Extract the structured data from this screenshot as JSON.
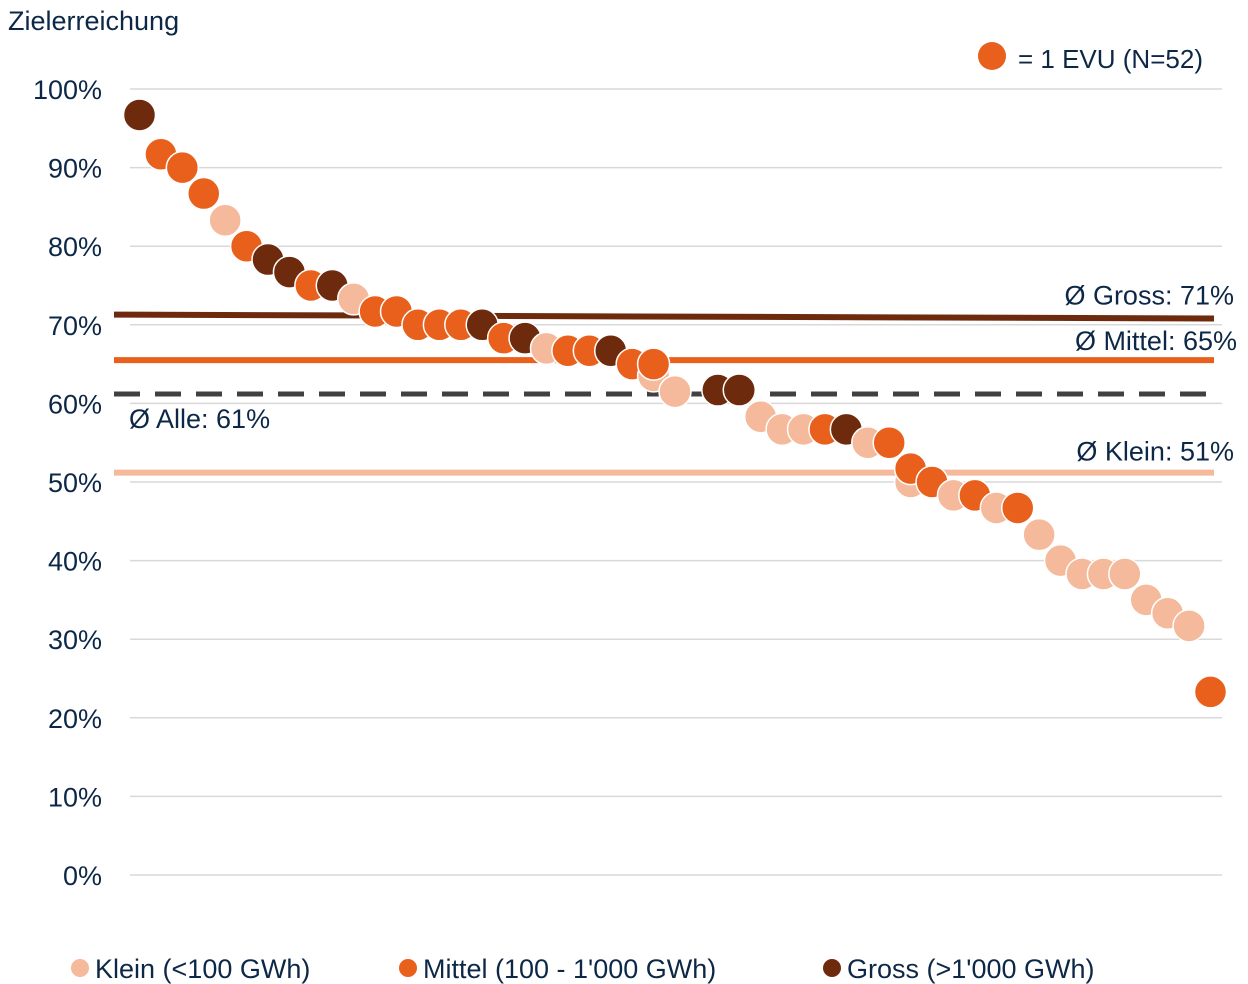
{
  "chart_data": {
    "type": "scatter",
    "ylabel": "Zielerreichung",
    "ylim": [
      0,
      100
    ],
    "yticks": [
      0,
      10,
      20,
      30,
      40,
      50,
      60,
      70,
      80,
      90,
      100
    ],
    "y_tick_labels": [
      "0%",
      "10%",
      "20%",
      "30%",
      "40%",
      "50%",
      "60%",
      "70%",
      "80%",
      "90%",
      "100%"
    ],
    "grid": true,
    "legend_position": "bottom",
    "marker_note": "= 1 EVU (N=52)",
    "marker_note_color": "#E8601C",
    "colors": {
      "Klein": "#F5B99B",
      "Mittel": "#E8601C",
      "Gross": "#6E2A0C",
      "text": "#0D2847",
      "grid": "#D9D9D9",
      "avg_all": "#404040"
    },
    "series": [
      {
        "name": "Klein (<100 GWh)",
        "key": "Klein",
        "color": "#F5B99B",
        "points": [
          [
            5,
            83.3
          ],
          [
            11,
            73.3
          ],
          [
            20,
            67
          ],
          [
            25,
            63.5
          ],
          [
            26,
            61.5
          ],
          [
            30,
            58.3
          ],
          [
            31,
            56.7
          ],
          [
            32,
            56.7
          ],
          [
            35,
            55
          ],
          [
            37,
            50
          ],
          [
            39,
            48.3
          ],
          [
            41,
            46.7
          ],
          [
            43,
            43.3
          ],
          [
            44,
            40
          ],
          [
            45,
            38.3
          ],
          [
            46,
            38.3
          ],
          [
            47,
            38.3
          ],
          [
            48,
            35
          ],
          [
            49,
            33.3
          ],
          [
            50,
            31.7
          ]
        ]
      },
      {
        "name": "Mittel (100 - 1'000 GWh)",
        "key": "Mittel",
        "color": "#E8601C",
        "points": [
          [
            2,
            91.7
          ],
          [
            3,
            90
          ],
          [
            4,
            86.7
          ],
          [
            6,
            80
          ],
          [
            9,
            75
          ],
          [
            12,
            71.7
          ],
          [
            13,
            71.7
          ],
          [
            14,
            70
          ],
          [
            15,
            70
          ],
          [
            16,
            70
          ],
          [
            18,
            68.3
          ],
          [
            21,
            66.7
          ],
          [
            22,
            66.7
          ],
          [
            24,
            65
          ],
          [
            25,
            65
          ],
          [
            33,
            56.7
          ],
          [
            36,
            55
          ],
          [
            37,
            51.7
          ],
          [
            38,
            50
          ],
          [
            40,
            48.3
          ],
          [
            42,
            46.7
          ],
          [
            51,
            23.3
          ]
        ]
      },
      {
        "name": "Gross (>1'000 GWh)",
        "key": "Gross",
        "color": "#6E2A0C",
        "points": [
          [
            1,
            96.7
          ],
          [
            7,
            78.3
          ],
          [
            8,
            76.7
          ],
          [
            10,
            75
          ],
          [
            17,
            70
          ],
          [
            19,
            68.3
          ],
          [
            23,
            66.7
          ],
          [
            28,
            61.7
          ],
          [
            29,
            61.7
          ],
          [
            34,
            56.7
          ]
        ]
      }
    ],
    "averages": [
      {
        "key": "Gross",
        "label": "Ø Gross: 71%",
        "value_start": 71.3,
        "value_end": 70.8,
        "color": "#6E2A0C",
        "style": "solid"
      },
      {
        "key": "Mittel",
        "label": "Ø Mittel: 65%",
        "value_start": 65.5,
        "value_end": 65.5,
        "color": "#E8601C",
        "style": "solid"
      },
      {
        "key": "Alle",
        "label": "Ø Alle: 61%",
        "value_start": 61.2,
        "value_end": 61.2,
        "color": "#404040",
        "style": "dashed"
      },
      {
        "key": "Klein",
        "label": "Ø Klein: 51%",
        "value_start": 51.2,
        "value_end": 51.2,
        "color": "#F5B99B",
        "style": "solid"
      }
    ]
  }
}
